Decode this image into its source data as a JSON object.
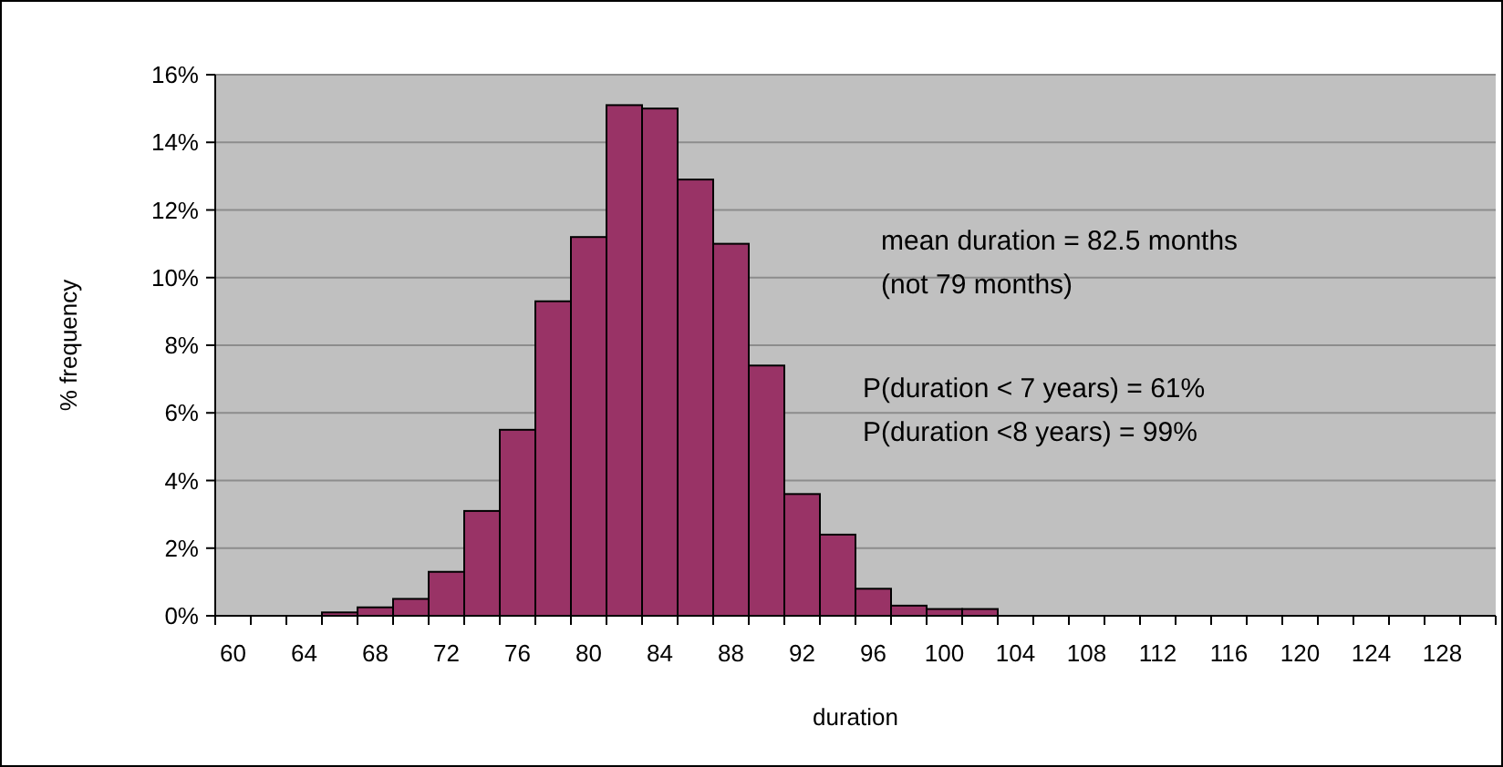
{
  "chart_data": {
    "type": "bar",
    "xlabel": "duration",
    "ylabel": "% frequency",
    "categories": [
      "60",
      null,
      "64",
      null,
      "68",
      null,
      "72",
      null,
      "76",
      null,
      "80",
      null,
      "84",
      null,
      "88",
      null,
      "92",
      null,
      "96",
      null,
      "100",
      null,
      "104",
      null,
      "108",
      null,
      "112",
      null,
      "116",
      null,
      "120",
      null,
      "124",
      null,
      "128",
      null
    ],
    "values": [
      0,
      0,
      0,
      0.1,
      0.25,
      0.5,
      1.3,
      3.1,
      5.5,
      9.3,
      11.2,
      15.1,
      15.0,
      12.9,
      11.0,
      7.4,
      3.6,
      2.4,
      0.8,
      0.3,
      0.2,
      0.2,
      0,
      0,
      0,
      0,
      0,
      0,
      0,
      0,
      0,
      0,
      0,
      0,
      0,
      0
    ],
    "color": "#993366",
    "ylim": [
      0,
      16
    ],
    "yticks": [
      {
        "value": 0,
        "label": "0%"
      },
      {
        "value": 2,
        "label": "2%"
      },
      {
        "value": 4,
        "label": "4%"
      },
      {
        "value": 6,
        "label": "6%"
      },
      {
        "value": 8,
        "label": "8%"
      },
      {
        "value": 10,
        "label": "10%"
      },
      {
        "value": 12,
        "label": "12%"
      },
      {
        "value": 14,
        "label": "14%"
      },
      {
        "value": 16,
        "label": "16%"
      }
    ],
    "grid": "y",
    "annotations": [
      "mean duration = 82.5 months",
      "(not 79 months)",
      "P(duration < 7 years) = 61%",
      "P(duration <8 years) = 99%"
    ]
  }
}
